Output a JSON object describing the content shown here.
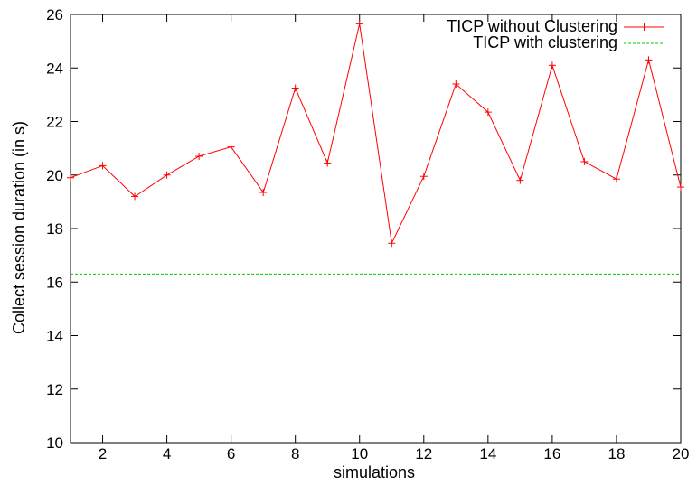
{
  "chart_data": {
    "type": "line",
    "xlabel": "simulations",
    "ylabel": "Collect session duration (in s)",
    "xlim": [
      1,
      20
    ],
    "ylim": [
      10,
      26
    ],
    "xticks": [
      2,
      4,
      6,
      8,
      10,
      12,
      14,
      16,
      18,
      20
    ],
    "yticks": [
      10,
      12,
      14,
      16,
      18,
      20,
      22,
      24,
      26
    ],
    "grid": false,
    "legend_position": "top-right",
    "series": [
      {
        "name": "TICP without Clustering",
        "color": "#ff0000",
        "marker": "plus",
        "x": [
          1,
          2,
          3,
          4,
          5,
          6,
          7,
          8,
          9,
          10,
          11,
          12,
          13,
          14,
          15,
          16,
          17,
          18,
          19,
          20
        ],
        "y": [
          19.9,
          20.35,
          19.2,
          20.0,
          20.7,
          21.05,
          19.35,
          23.25,
          20.45,
          25.65,
          17.45,
          19.95,
          23.4,
          22.35,
          19.8,
          24.1,
          20.5,
          19.85,
          24.3,
          19.55
        ]
      },
      {
        "name": "TICP with clustering",
        "color": "#00cc00",
        "style": "dashed",
        "x": [
          1,
          20
        ],
        "y": [
          16.3,
          16.3
        ]
      }
    ]
  }
}
